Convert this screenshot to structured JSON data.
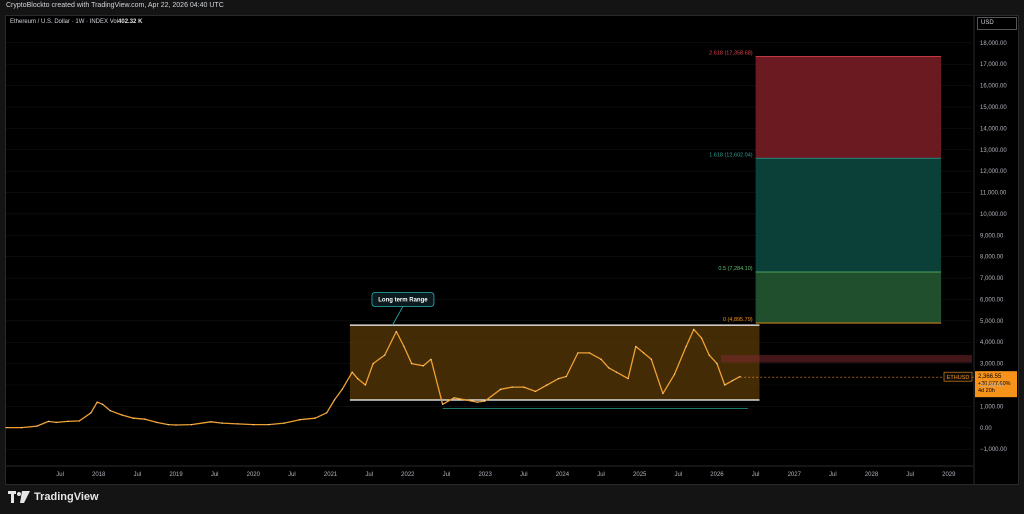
{
  "header": {
    "credit": "CryptoBlockto created with TradingView.com, Apr 22, 2026 04:40 UTC",
    "symbol_line": "Ethereum / U.S. Dollar · 1W · INDEX",
    "volume_label": "Vol",
    "volume_value": "402.32 K"
  },
  "price_axis": {
    "currency": "USD"
  },
  "branding": {
    "logo_text": "TradingView",
    "logo_icon": "tradingview-logo-icon"
  },
  "colors": {
    "background": "#000000",
    "line": "#f0a030",
    "range_box": "#5a3a08",
    "red_zone": "#6b1a22",
    "teal_zone": "#0b4039",
    "green_zone": "#1f4f2c",
    "price_tag": "#f7931a"
  },
  "chart_data": {
    "type": "line",
    "title": "",
    "xlabel": "",
    "ylabel": "",
    "x_range": [
      2016.8,
      2029.3
    ],
    "ylim": [
      -1600,
      18600
    ],
    "y_ticks": [
      -1000,
      0,
      1000,
      2000,
      3000,
      4000,
      5000,
      6000,
      7000,
      8000,
      9000,
      10000,
      11000,
      12000,
      13000,
      14000,
      15000,
      16000,
      17000,
      18000
    ],
    "y_tick_labels": [
      "−1,000.00",
      "0.00",
      "1,000.00",
      "2,000.00",
      "3,000.00",
      "4,000.00",
      "5,000.00",
      "6,000.00",
      "7,000.00",
      "8,000.00",
      "9,000.00",
      "10,000.00",
      "11,000.00",
      "12,000.00",
      "13,000.00",
      "14,000.00",
      "15,000.00",
      "16,000.00",
      "17,000.00",
      "18,000.00"
    ],
    "x_ticks": [
      {
        "x": 2017.5,
        "label": "Jul"
      },
      {
        "x": 2018.0,
        "label": "2018"
      },
      {
        "x": 2018.5,
        "label": "Jul"
      },
      {
        "x": 2019.0,
        "label": "2019"
      },
      {
        "x": 2019.5,
        "label": "Jul"
      },
      {
        "x": 2020.0,
        "label": "2020"
      },
      {
        "x": 2020.5,
        "label": "Jul"
      },
      {
        "x": 2021.0,
        "label": "2021"
      },
      {
        "x": 2021.5,
        "label": "Jul"
      },
      {
        "x": 2022.0,
        "label": "2022"
      },
      {
        "x": 2022.5,
        "label": "Jul"
      },
      {
        "x": 2023.0,
        "label": "2023"
      },
      {
        "x": 2023.5,
        "label": "Jul"
      },
      {
        "x": 2024.0,
        "label": "2024"
      },
      {
        "x": 2024.5,
        "label": "Jul"
      },
      {
        "x": 2025.0,
        "label": "2025"
      },
      {
        "x": 2025.5,
        "label": "Jul"
      },
      {
        "x": 2026.0,
        "label": "2026"
      },
      {
        "x": 2026.5,
        "label": "Jul"
      },
      {
        "x": 2027.0,
        "label": "2027"
      },
      {
        "x": 2027.5,
        "label": "Jul"
      },
      {
        "x": 2028.0,
        "label": "2028"
      },
      {
        "x": 2028.5,
        "label": "Jul"
      },
      {
        "x": 2029.0,
        "label": "2029"
      }
    ],
    "series": [
      {
        "x": [
          2016.8,
          2017.0,
          2017.2,
          2017.35,
          2017.45,
          2017.6,
          2017.75,
          2017.9,
          2017.98,
          2018.05,
          2018.15,
          2018.3,
          2018.45,
          2018.6,
          2018.75,
          2018.9,
          2019.0,
          2019.2,
          2019.45,
          2019.6,
          2019.8,
          2020.0,
          2020.2,
          2020.4,
          2020.6,
          2020.8,
          2020.95,
          2021.05,
          2021.15,
          2021.28,
          2021.35,
          2021.45,
          2021.55,
          2021.7,
          2021.85,
          2021.95,
          2022.05,
          2022.2,
          2022.3,
          2022.45,
          2022.6,
          2022.75,
          2022.9,
          2023.0,
          2023.2,
          2023.35,
          2023.5,
          2023.65,
          2023.8,
          2023.95,
          2024.05,
          2024.2,
          2024.35,
          2024.5,
          2024.6,
          2024.7,
          2024.85,
          2024.95,
          2025.05,
          2025.15,
          2025.3,
          2025.45,
          2025.6,
          2025.7,
          2025.8,
          2025.9,
          2026.0,
          2026.1,
          2026.2,
          2026.3
        ],
        "values": [
          10,
          10,
          80,
          300,
          250,
          300,
          320,
          700,
          1200,
          1100,
          800,
          600,
          450,
          400,
          250,
          150,
          130,
          150,
          280,
          220,
          180,
          150,
          150,
          220,
          380,
          450,
          700,
          1300,
          1800,
          2600,
          2300,
          2000,
          3000,
          3400,
          4500,
          3800,
          3000,
          2900,
          3200,
          1100,
          1400,
          1300,
          1200,
          1250,
          1800,
          1900,
          1900,
          1700,
          2000,
          2300,
          2400,
          3500,
          3500,
          3200,
          2800,
          2600,
          2300,
          3800,
          3500,
          3200,
          1600,
          2500,
          3800,
          4600,
          4200,
          3400,
          3000,
          2000,
          2200,
          2400
        ]
      }
    ],
    "range_box": {
      "x0": 2021.25,
      "x1": 2026.55,
      "low": 1300,
      "high": 4800
    },
    "fib_levels": [
      {
        "label": "2.618 (17,358.68)",
        "value": 17358.68
      },
      {
        "label": "1.618 (12,602.04)",
        "value": 12602.04
      },
      {
        "label": "0.5 (7,284.10)",
        "value": 7284.1
      },
      {
        "label": "0 (4,895.79)",
        "value": 4895.79
      }
    ],
    "fib_box": {
      "x0": 2026.5,
      "x1": 2028.9
    },
    "resistance_band": {
      "low": 3050,
      "high": 3400,
      "x0": 2026.05
    },
    "support_line": {
      "value": 900,
      "x0": 2022.45,
      "x1": 2026.4
    },
    "annotation": {
      "text": "Long term Range",
      "x": 2021.6,
      "y": 6000
    },
    "current_price": {
      "symbol": "ETHUSD",
      "price": "2,366.55",
      "change": "+20,677.60%",
      "countdown": "4d 20h",
      "value": 2366.55
    }
  }
}
